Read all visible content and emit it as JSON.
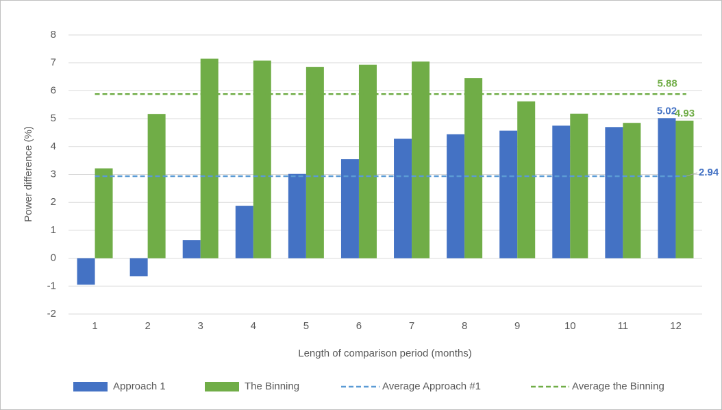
{
  "chart_data": {
    "type": "bar",
    "x_label": "Length of comparison period (months)",
    "y_label": "Power difference (%)",
    "categories": [
      "1",
      "2",
      "3",
      "4",
      "5",
      "6",
      "7",
      "8",
      "9",
      "10",
      "11",
      "12"
    ],
    "series": [
      {
        "name": "Approach 1",
        "color": "#4472c4",
        "values": [
          -0.95,
          -0.65,
          0.65,
          1.88,
          3.02,
          3.55,
          4.28,
          4.44,
          4.57,
          4.75,
          4.7,
          5.02
        ]
      },
      {
        "name": "The Binning",
        "color": "#70ad47",
        "values": [
          3.22,
          5.17,
          7.15,
          7.08,
          6.85,
          6.93,
          7.05,
          6.45,
          5.62,
          5.18,
          4.85,
          4.93
        ]
      }
    ],
    "reference_lines": [
      {
        "name": "Average Approach #1",
        "color": "#5b9bd5",
        "label_color": "#4472c4",
        "value": 2.94
      },
      {
        "name": "Average the Binning",
        "color": "#70ad47",
        "label_color": "#70ad47",
        "value": 5.88
      }
    ],
    "label_last": true,
    "ylim": [
      -2,
      8
    ],
    "yticks": [
      -2,
      -1,
      0,
      1,
      2,
      3,
      4,
      5,
      6,
      7,
      8
    ],
    "grid": true
  }
}
